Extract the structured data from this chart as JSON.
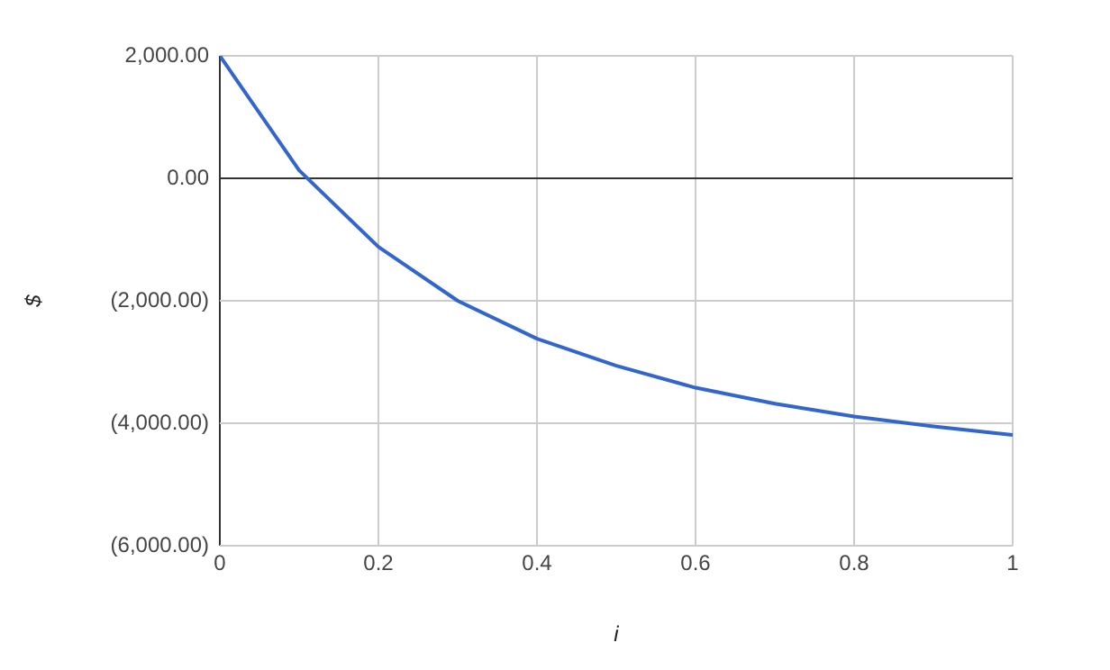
{
  "chart_data": {
    "type": "line",
    "xlabel": "i",
    "ylabel": "$",
    "x": [
      0,
      0.1,
      0.2,
      0.3,
      0.4,
      0.5,
      0.6,
      0.7,
      0.8,
      0.9,
      1
    ],
    "series": [
      {
        "color": "#3366cc",
        "values": [
          2000,
          130,
          -1120,
          -2000,
          -2620,
          -3060,
          -3420,
          -3680,
          -3890,
          -4050,
          -4190
        ]
      }
    ],
    "xlim": [
      0,
      1
    ],
    "xticks": [
      0,
      0.2,
      0.4,
      0.6,
      0.8,
      1
    ],
    "ylim": [
      -6000,
      2000
    ],
    "yticks": [
      {
        "value": -6000,
        "label": "(6,000.00)"
      },
      {
        "value": -4000,
        "label": "(4,000.00)"
      },
      {
        "value": -2000,
        "label": "(2,000.00)"
      },
      {
        "value": 0,
        "label": "0.00"
      },
      {
        "value": 2000,
        "label": "2,000.00"
      }
    ],
    "grid": true,
    "legend": false,
    "marker": "none",
    "line_style": "solid"
  }
}
